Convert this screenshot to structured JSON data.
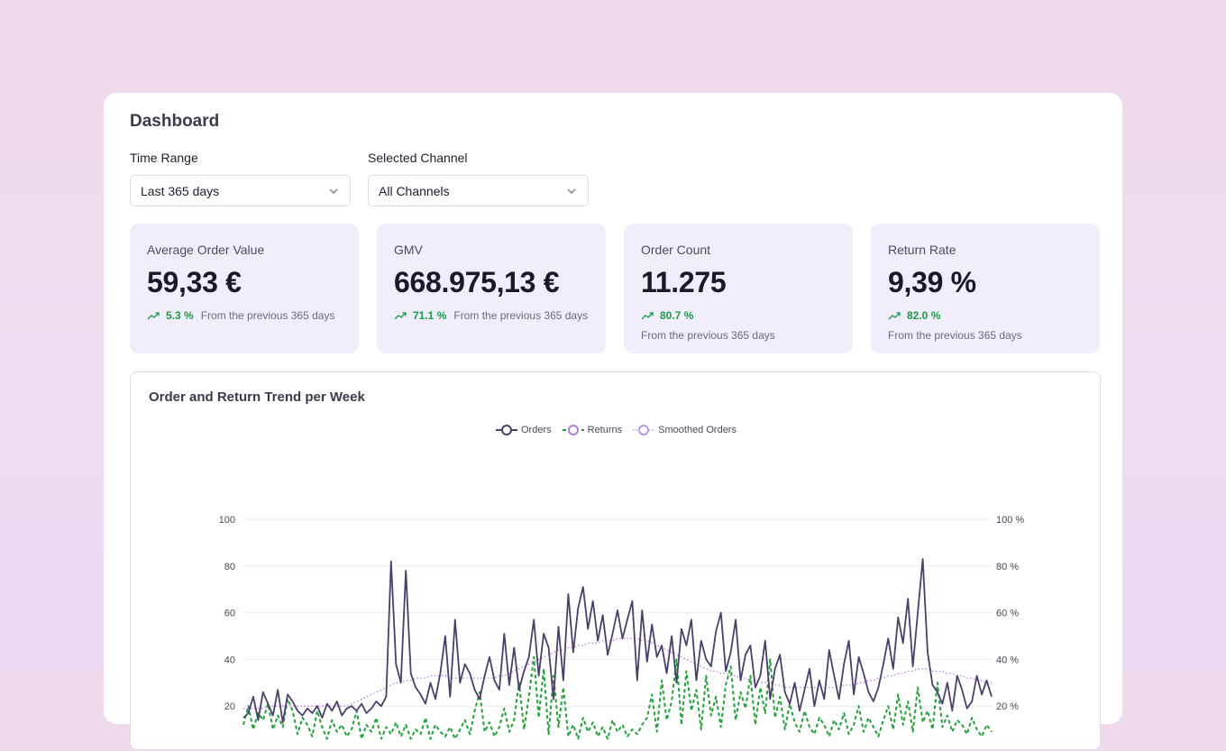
{
  "header": {
    "title": "Dashboard"
  },
  "filters": {
    "time_range": {
      "label": "Time Range",
      "value": "Last 365 days"
    },
    "channel": {
      "label": "Selected Channel",
      "value": "All Channels"
    }
  },
  "kpis": [
    {
      "label": "Average Order Value",
      "value": "59,33 €",
      "change": "5.3 %",
      "note": "From the previous 365 days"
    },
    {
      "label": "GMV",
      "value": "668.975,13 €",
      "change": "71.1 %",
      "note": "From the previous 365 days"
    },
    {
      "label": "Order Count",
      "value": "11.275",
      "change": "80.7 %",
      "note": "From the previous 365 days"
    },
    {
      "label": "Return Rate",
      "value": "9,39 %",
      "change": "82.0 %",
      "note": "From the previous 365 days"
    }
  ],
  "colors": {
    "orders": "#4b3f6b",
    "returns": "#22a33a",
    "smoothed": "#b27fe0",
    "trend_up": "#1a9c45",
    "kpi_bg": "#f1eefc"
  },
  "icons": {
    "select_chevron": "chevron-down-icon",
    "trend": "trend-up-icon"
  },
  "chart_data": {
    "type": "line",
    "title": "Order and Return Trend per Week",
    "legend": [
      "Orders",
      "Returns",
      "Smoothed Orders"
    ],
    "legend_position": "top-center",
    "grid": true,
    "y_left": {
      "ticks": [
        "100",
        "80",
        "60",
        "40",
        "20"
      ],
      "range": [
        0,
        100
      ]
    },
    "y_right": {
      "ticks": [
        "100 %",
        "80 %",
        "60 %",
        "40 %",
        "20 %"
      ],
      "range": [
        0,
        100
      ]
    },
    "series": [
      {
        "name": "Orders",
        "values": [
          15,
          17,
          24,
          14,
          26,
          21,
          16,
          27,
          13,
          25,
          22,
          18,
          16,
          19,
          17,
          20,
          15,
          21,
          18,
          22,
          16,
          19,
          20,
          18,
          21,
          17,
          19,
          22,
          20,
          24,
          82,
          38,
          30,
          78,
          34,
          28,
          25,
          21,
          30,
          23,
          34,
          50,
          24,
          57,
          30,
          38,
          34,
          27,
          23,
          33,
          41,
          31,
          27,
          51,
          29,
          45,
          27,
          35,
          41,
          57,
          33,
          51,
          45,
          23,
          54,
          31,
          68,
          43,
          62,
          71,
          53,
          65,
          48,
          59,
          42,
          51,
          61,
          49,
          57,
          65,
          31,
          61,
          39,
          55,
          41,
          46,
          34,
          50,
          30,
          53,
          46,
          57,
          31,
          48,
          40,
          37,
          52,
          60,
          35,
          43,
          57,
          31,
          42,
          46,
          28,
          33,
          48,
          23,
          36,
          42,
          26,
          21,
          30,
          18,
          27,
          36,
          20,
          31,
          23,
          44,
          33,
          23,
          38,
          48,
          25,
          41,
          34,
          26,
          22,
          28,
          38,
          49,
          36,
          58,
          47,
          66,
          37,
          60,
          83,
          43,
          29,
          26,
          21,
          30,
          18,
          33,
          27,
          19,
          22,
          33,
          25,
          31,
          24
        ],
        "scale": "left"
      },
      {
        "name": "Returns",
        "values": [
          12,
          20,
          10,
          17,
          14,
          21,
          10,
          16,
          11,
          23,
          18,
          8,
          15,
          12,
          7,
          18,
          11,
          6,
          14,
          9,
          12,
          7,
          10,
          18,
          6,
          12,
          9,
          15,
          6,
          11,
          8,
          13,
          7,
          12,
          6,
          10,
          8,
          15,
          6,
          12,
          9,
          7,
          11,
          6,
          10,
          14,
          8,
          18,
          26,
          9,
          13,
          7,
          11,
          19,
          9,
          14,
          30,
          10,
          24,
          41,
          15,
          36,
          8,
          33,
          11,
          28,
          7,
          12,
          6,
          15,
          9,
          13,
          7,
          11,
          6,
          14,
          9,
          12,
          7,
          10,
          8,
          12,
          15,
          25,
          9,
          31,
          14,
          22,
          40,
          12,
          35,
          18,
          27,
          10,
          33,
          16,
          24,
          11,
          29,
          37,
          14,
          26,
          19,
          33,
          12,
          28,
          17,
          40,
          15,
          24,
          10,
          21,
          13,
          9,
          18,
          11,
          8,
          15,
          12,
          7,
          14,
          10,
          17,
          8,
          12,
          20,
          9,
          15,
          11,
          7,
          14,
          20,
          10,
          25,
          12,
          22,
          9,
          28,
          13,
          18,
          10,
          30,
          11,
          16,
          9,
          14,
          12,
          8,
          15,
          10,
          7,
          12,
          9
        ],
        "scale": "right"
      },
      {
        "name": "Smoothed Orders",
        "values": [
          19,
          19,
          19,
          19,
          19,
          20,
          20,
          20,
          20,
          20,
          20,
          20,
          20,
          20,
          20,
          20,
          20,
          20,
          20,
          20,
          20,
          20,
          21,
          22,
          23,
          24,
          25,
          26,
          27,
          28,
          29,
          30,
          30,
          31,
          31,
          32,
          32,
          32,
          33,
          33,
          33,
          33,
          32,
          32,
          32,
          32,
          32,
          32,
          32,
          32,
          32,
          32,
          33,
          33,
          34,
          35,
          36,
          37,
          38,
          39,
          40,
          41,
          42,
          43,
          44,
          44,
          45,
          45,
          46,
          46,
          47,
          47,
          47,
          48,
          48,
          48,
          49,
          49,
          49,
          49,
          49,
          48,
          48,
          47,
          46,
          45,
          44,
          43,
          42,
          41,
          40,
          39,
          38,
          37,
          36,
          35,
          35,
          34,
          34,
          33,
          33,
          32,
          32,
          31,
          31,
          30,
          30,
          29,
          29,
          29,
          28,
          28,
          28,
          28,
          28,
          28,
          28,
          28,
          28,
          28,
          28,
          28,
          29,
          29,
          29,
          30,
          30,
          31,
          31,
          32,
          32,
          33,
          33,
          34,
          34,
          35,
          35,
          36,
          36,
          36,
          35,
          35,
          35,
          34,
          34,
          33,
          33,
          32,
          32,
          31,
          31,
          30,
          30
        ],
        "scale": "left"
      }
    ]
  }
}
